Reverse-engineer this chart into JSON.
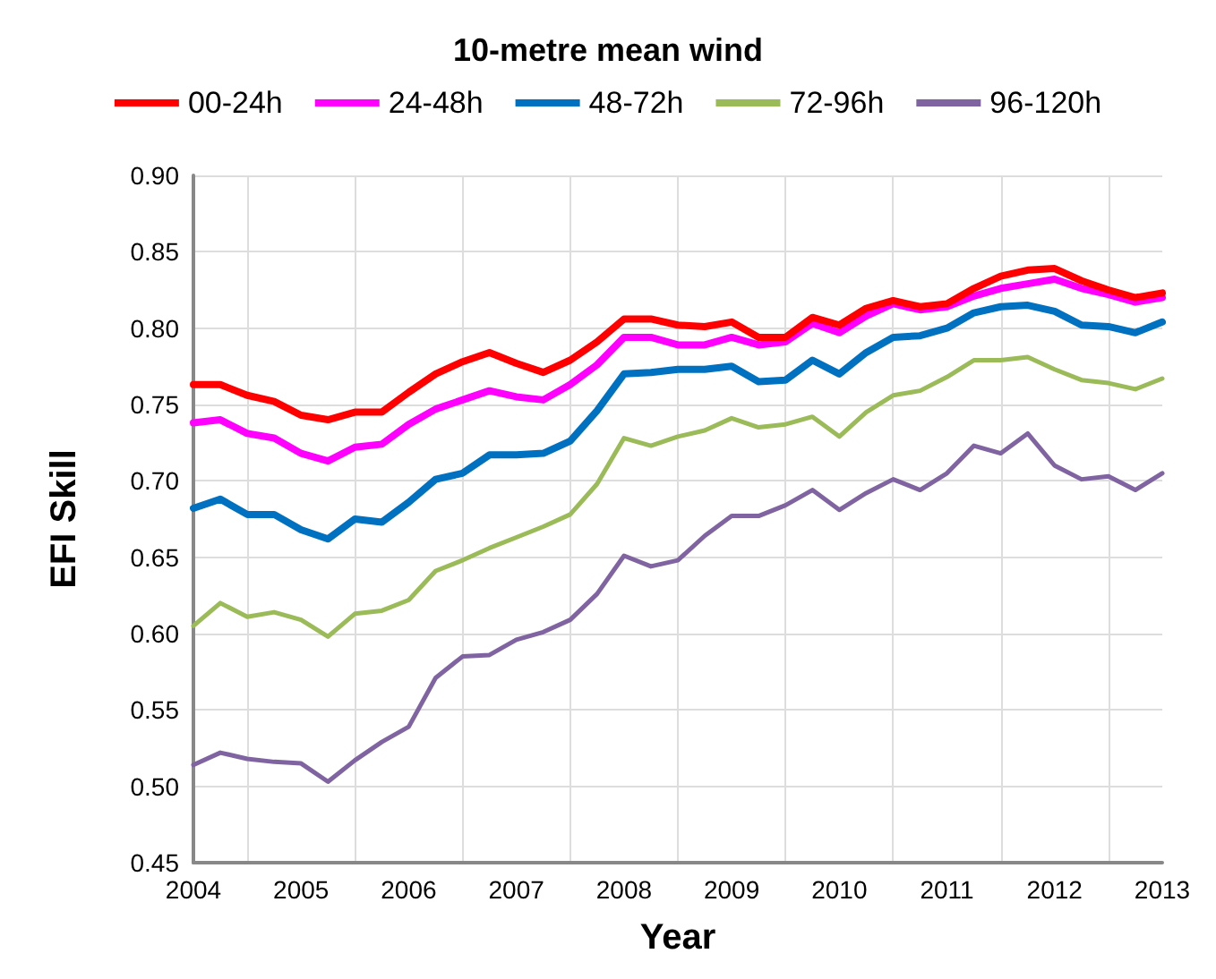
{
  "chart_data": {
    "type": "line",
    "title": "10-metre mean wind",
    "xlabel": "Year",
    "ylabel": "EFI Skill",
    "categories": [
      "2004",
      null,
      null,
      null,
      "2005",
      null,
      null,
      null,
      "2006",
      null,
      null,
      null,
      "2007",
      null,
      null,
      null,
      "2008",
      null,
      null,
      null,
      "2009",
      null,
      null,
      null,
      "2010",
      null,
      null,
      null,
      "2011",
      null,
      null,
      null,
      "2012",
      null,
      null,
      null,
      "2013"
    ],
    "series": [
      {
        "name": "00-24h",
        "color": "#ff0000",
        "values": [
          0.763,
          0.763,
          0.756,
          0.752,
          0.743,
          0.74,
          0.745,
          0.745,
          0.758,
          0.77,
          0.778,
          0.784,
          0.777,
          0.771,
          0.779,
          0.791,
          0.806,
          0.806,
          0.802,
          0.801,
          0.804,
          0.794,
          0.794,
          0.807,
          0.802,
          0.813,
          0.818,
          0.814,
          0.816,
          0.826,
          0.834,
          0.838,
          0.839,
          0.831,
          0.825,
          0.82,
          0.823
        ]
      },
      {
        "name": "24-48h",
        "color": "#ff00ff",
        "values": [
          0.738,
          0.74,
          0.731,
          0.728,
          0.718,
          0.713,
          0.722,
          0.724,
          0.737,
          0.747,
          0.753,
          0.759,
          0.755,
          0.753,
          0.763,
          0.776,
          0.794,
          0.794,
          0.789,
          0.789,
          0.794,
          0.789,
          0.791,
          0.803,
          0.797,
          0.808,
          0.816,
          0.812,
          0.814,
          0.821,
          0.826,
          0.829,
          0.832,
          0.826,
          0.822,
          0.817,
          0.82
        ]
      },
      {
        "name": "48-72h",
        "color": "#0070c0",
        "values": [
          0.682,
          0.688,
          0.678,
          0.678,
          0.668,
          0.662,
          0.675,
          0.673,
          0.686,
          0.701,
          0.705,
          0.717,
          0.717,
          0.718,
          0.726,
          0.746,
          0.77,
          0.771,
          0.773,
          0.773,
          0.775,
          0.765,
          0.766,
          0.779,
          0.77,
          0.784,
          0.794,
          0.795,
          0.8,
          0.81,
          0.814,
          0.815,
          0.811,
          0.802,
          0.801,
          0.797,
          0.804
        ]
      },
      {
        "name": "72-96h",
        "color": "#9bbb59",
        "values": [
          0.605,
          0.62,
          0.611,
          0.614,
          0.609,
          0.598,
          0.613,
          0.615,
          0.622,
          0.641,
          0.648,
          0.656,
          0.663,
          0.67,
          0.678,
          0.698,
          0.728,
          0.723,
          0.729,
          0.733,
          0.741,
          0.735,
          0.737,
          0.742,
          0.729,
          0.745,
          0.756,
          0.759,
          0.768,
          0.779,
          0.779,
          0.781,
          0.773,
          0.766,
          0.764,
          0.76,
          0.767
        ]
      },
      {
        "name": "96-120h",
        "color": "#8064a2",
        "values": [
          0.514,
          0.522,
          0.518,
          0.516,
          0.515,
          0.503,
          0.517,
          0.529,
          0.539,
          0.571,
          0.585,
          0.586,
          0.596,
          0.601,
          0.609,
          0.626,
          0.651,
          0.644,
          0.648,
          0.664,
          0.677,
          0.677,
          0.684,
          0.694,
          0.681,
          0.692,
          0.701,
          0.694,
          0.705,
          0.723,
          0.718,
          0.731,
          0.71,
          0.701,
          0.703,
          0.694,
          0.705
        ]
      }
    ],
    "ylim": [
      0.45,
      0.9
    ],
    "yticks": [
      {
        "value": 0.45,
        "label": "0.45"
      },
      {
        "value": 0.5,
        "label": "0.50"
      },
      {
        "value": 0.55,
        "label": "0.55"
      },
      {
        "value": 0.6,
        "label": "0.60"
      },
      {
        "value": 0.65,
        "label": "0.65"
      },
      {
        "value": 0.7,
        "label": "0.70"
      },
      {
        "value": 0.75,
        "label": "0.75"
      },
      {
        "value": 0.8,
        "label": "0.80"
      },
      {
        "value": 0.85,
        "label": "0.85"
      },
      {
        "value": 0.9,
        "label": "0.90"
      }
    ],
    "grid": true,
    "legend": "top",
    "marker": "none",
    "line_style": "solid"
  }
}
